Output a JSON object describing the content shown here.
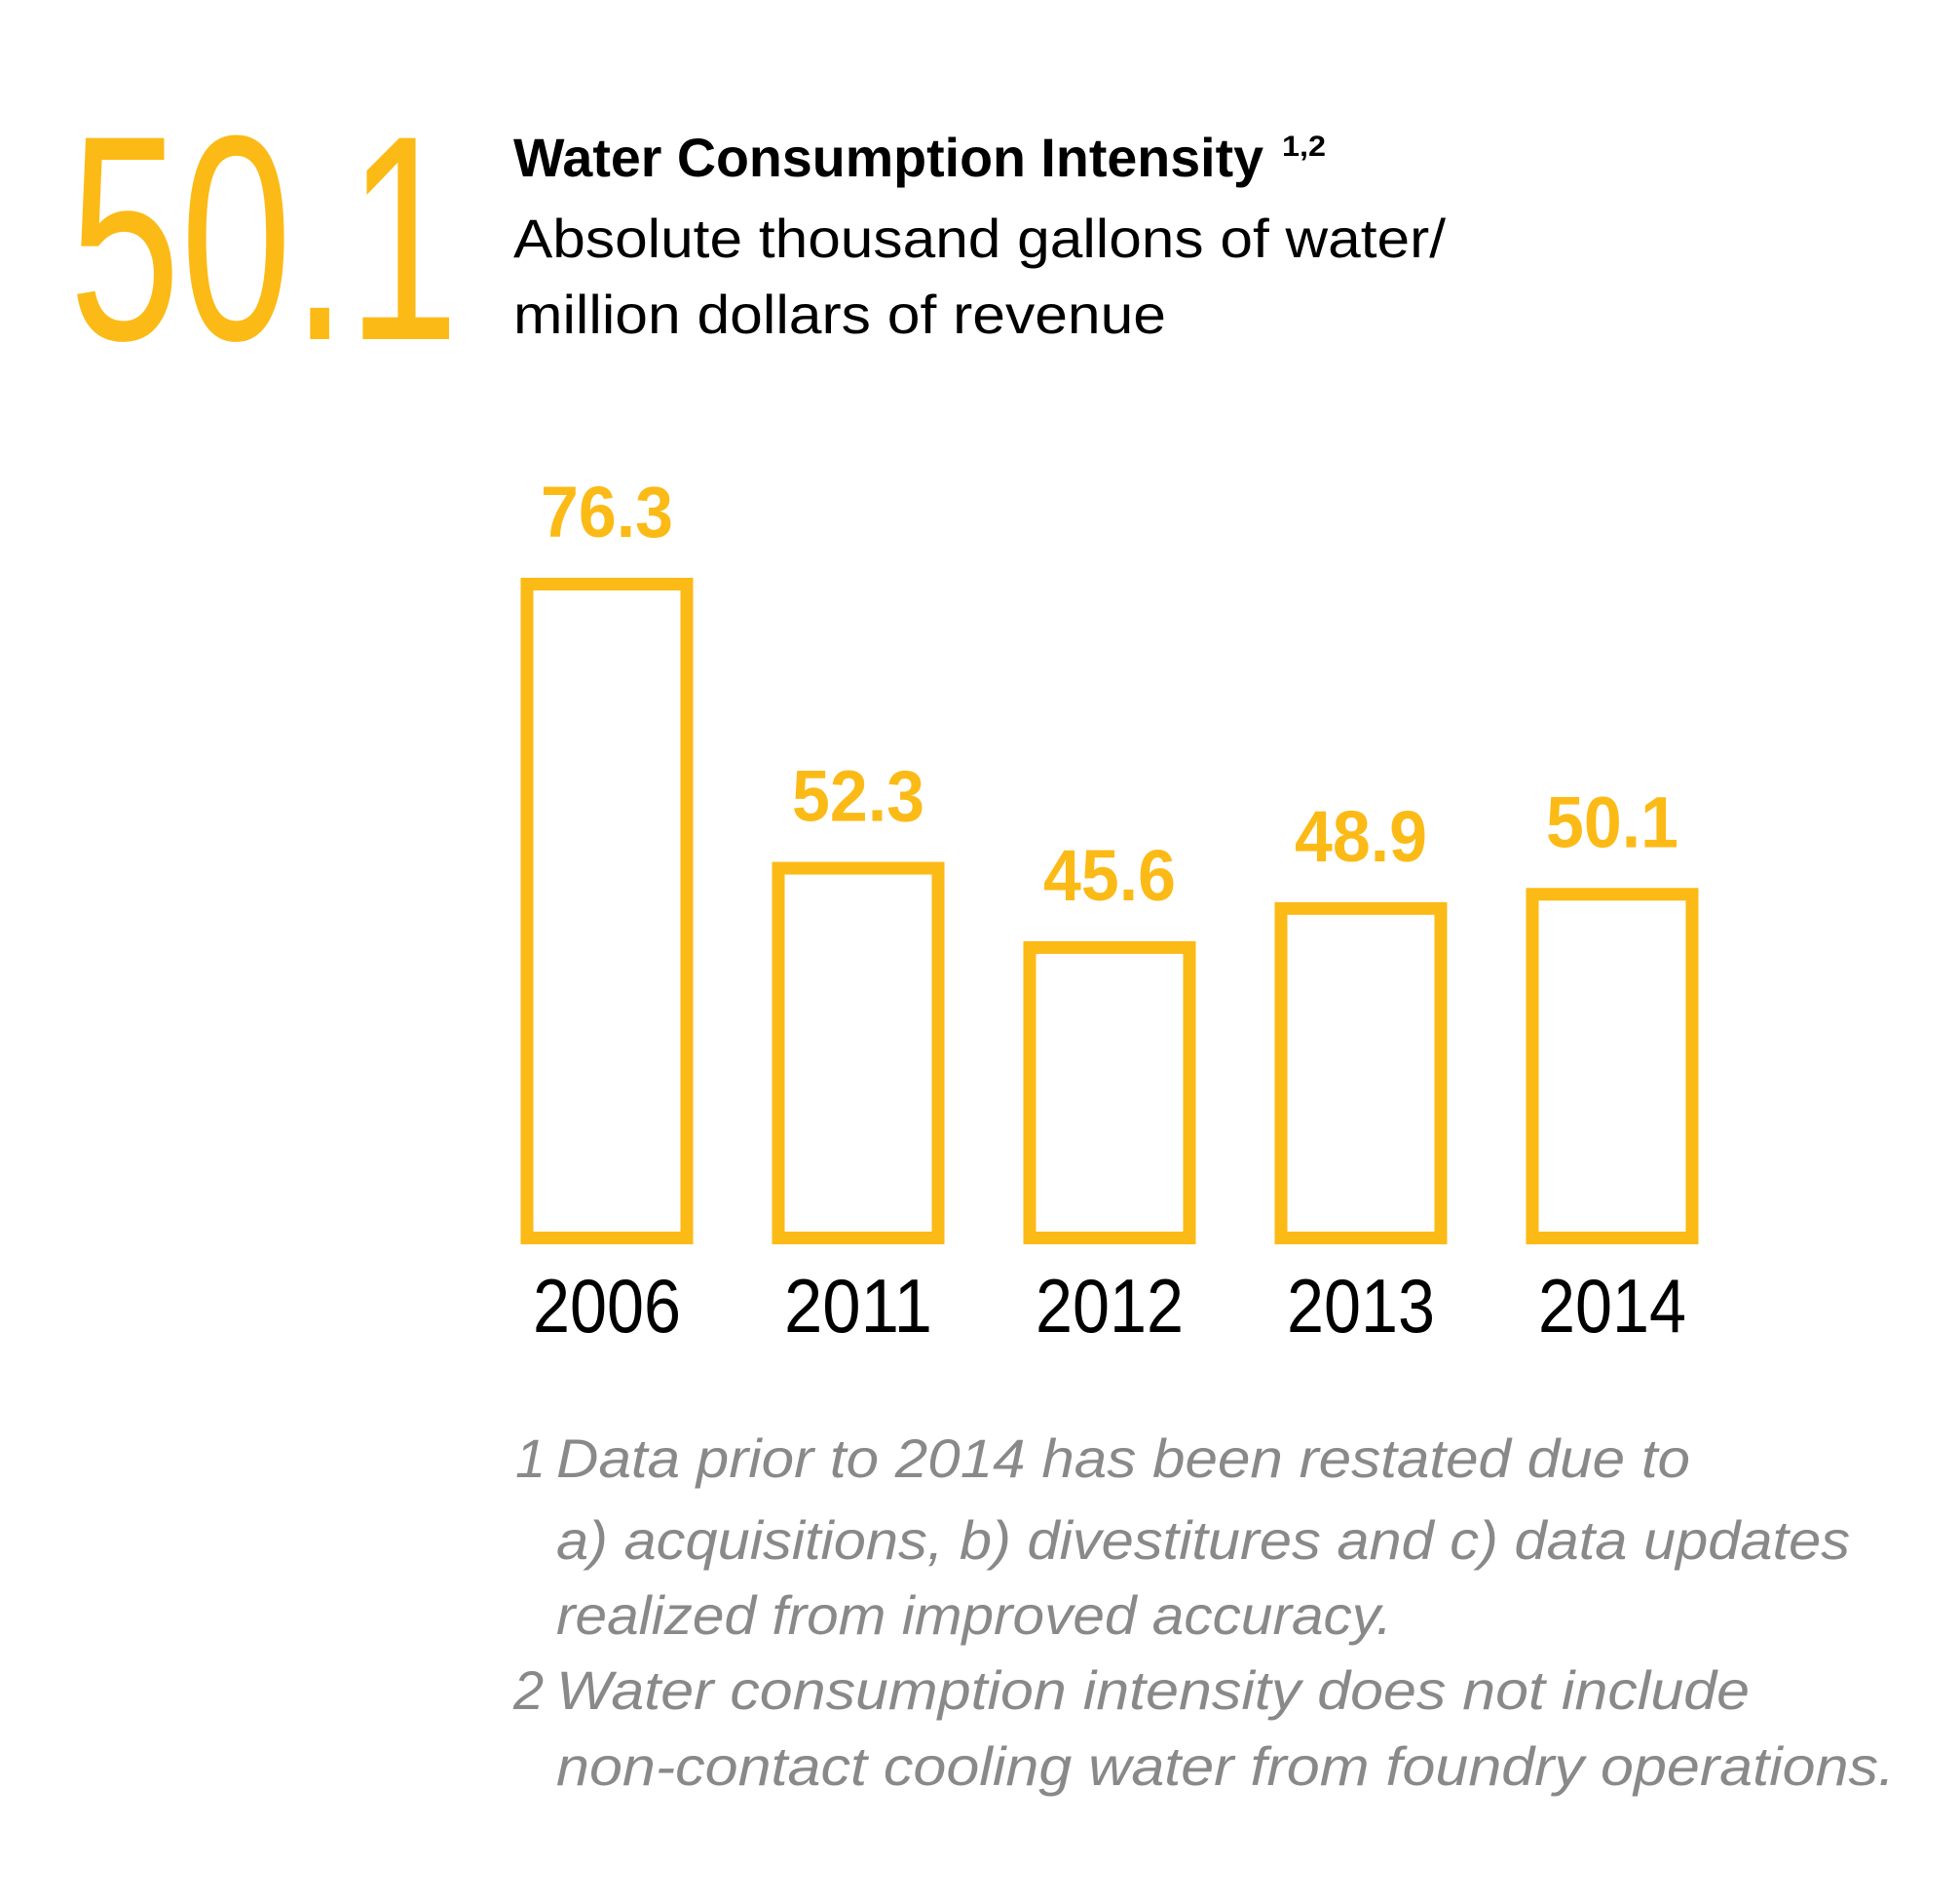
{
  "headline": "50.1",
  "chart_data": {
    "type": "bar",
    "title": "Water Consumption Intensity",
    "title_superscript": "1,2",
    "subtitle": [
      "Absolute thousand gallons of water/",
      "million dollars of revenue"
    ],
    "categories": [
      "2006",
      "2011",
      "2012",
      "2013",
      "2014"
    ],
    "values": [
      76.3,
      52.3,
      45.6,
      48.9,
      50.1
    ],
    "color": "#fbba16",
    "ylim": [
      20,
      80
    ]
  },
  "footnotes": [
    {
      "number": "1",
      "lines": [
        "Data prior to 2014 has been restated due to",
        "a) acquisitions, b) divestitures and c) data updates",
        "realized from improved accuracy."
      ]
    },
    {
      "number": "2",
      "lines": [
        "Water consumption intensity does not include",
        "non-contact cooling water from foundry operations."
      ]
    }
  ]
}
